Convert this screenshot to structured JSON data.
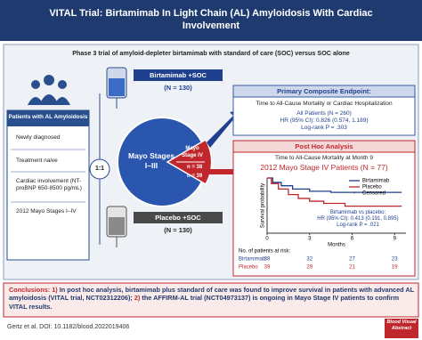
{
  "header": {
    "title": "VITAL Trial: Birtamimab In Light Chain (AL) Amyloidosis With Cardiac Involvement"
  },
  "subtitle": "Phase 3 trial of amyloid-depleter birtamimab with standard of care (SOC) versus SOC alone",
  "patients": {
    "title": "Patients with AL Amyloidosis",
    "criteria": [
      "Newly diagnosed",
      "Treatment naive",
      "Cardiac involvement (NT-proBNP 650-8500 pg/mL)",
      "2012 Mayo Stages I–IV"
    ]
  },
  "randomization": "1:1",
  "arms": [
    {
      "name": "Birtamimab +SOC",
      "n": "(N = 130)"
    },
    {
      "name": "Placebo +SOC",
      "n": "(N = 130)"
    }
  ],
  "stages": {
    "lower": "Mayo Stages I–III",
    "upper": "Mayo Stage IV",
    "n_birtamimab": "n = 38",
    "n_placebo": "n = 39"
  },
  "primary": {
    "title": "Primary Composite Endpoint:",
    "endpoint": "Time to All-Cause Mortality or Cardiac Hospitalization",
    "population": "All Patients (N = 260)",
    "hr": "HR (95% CI): 0.826 (0.574, 1.189)",
    "p": "Log-rank P = .303"
  },
  "post_hoc": {
    "title": "Post Hoc Analysis",
    "endpoint": "Time to All-Cause Mortality at Month 9",
    "population": "2012 Mayo Stage IV Patients (N = 77)",
    "comparison": "Birtamimab vs placebo:",
    "hr": "HR (95% CI): 0.413 (0.191, 0.895)",
    "p": "Log-rank P = .021"
  },
  "km_plot": {
    "type": "line",
    "y_label": "Survival probability",
    "x_label": "Months",
    "xlim": [
      0,
      9.8
    ],
    "xticks": [
      0,
      3,
      6,
      9
    ],
    "ylim": [
      0,
      1
    ],
    "series": [
      {
        "name": "Birtamimab",
        "color": "#1f3f8f",
        "x": [
          0,
          0.4,
          0.4,
          1,
          1,
          1.8,
          1.8,
          3,
          3,
          4.5,
          4.5,
          9.5
        ],
        "values": [
          1,
          1,
          0.92,
          0.92,
          0.86,
          0.86,
          0.8,
          0.8,
          0.76,
          0.76,
          0.74,
          0.74
        ]
      },
      {
        "name": "Placebo",
        "color": "#c0272d",
        "x": [
          0,
          0.3,
          0.3,
          0.8,
          0.8,
          1.5,
          1.5,
          2.2,
          2.2,
          3,
          3,
          4,
          4,
          5.5,
          5.5,
          9.5
        ],
        "values": [
          1,
          1,
          0.9,
          0.9,
          0.8,
          0.8,
          0.7,
          0.7,
          0.63,
          0.63,
          0.58,
          0.58,
          0.54,
          0.54,
          0.49,
          0.49
        ]
      }
    ],
    "censored_label": "Censored",
    "risk_table": {
      "title": "No. of patients at risk:",
      "rows": [
        {
          "name": "Birtamimab",
          "values": [
            38,
            32,
            27,
            23
          ]
        },
        {
          "name": "Placebo",
          "values": [
            39,
            29,
            21,
            19
          ]
        }
      ]
    }
  },
  "conclusions": {
    "label": "Conclusions:",
    "items": [
      {
        "marker": "1)",
        "text": "In post hoc analysis, birtamimab plus standard of care was found to improve survival in patients with advanced AL amyloidosis (VITAL trial, NCT02312206);"
      },
      {
        "marker": "2)",
        "text": "the AFFIRM-AL trial (NCT04973137) is ongoing in Mayo Stage IV patients to confirm VITAL results."
      }
    ]
  },
  "footer": {
    "citation": "Gertz et al. DOI: 10.1182/blood.2022019406",
    "brand": "Blood Visual Abstract"
  }
}
